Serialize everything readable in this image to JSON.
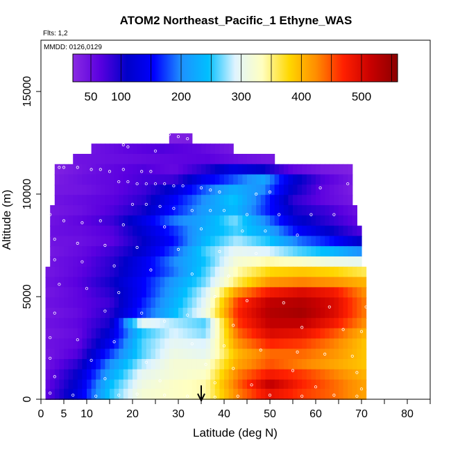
{
  "chart_data": {
    "type": "heatmap",
    "title": "ATOM2 Northeast_Pacific_1 Ethyne_WAS",
    "flights_label": "Flts: 1,2",
    "dates_label": "MMDD: 0126,0129",
    "xlabel": "Latitude (deg N)",
    "ylabel": "Altitude (m)",
    "xlim": [
      0,
      85
    ],
    "ylim": [
      0,
      17500
    ],
    "x_ticks": [
      0,
      5,
      10,
      20,
      30,
      40,
      50,
      60,
      70,
      80
    ],
    "x_minor_ticks": [
      15,
      25,
      35,
      45,
      55,
      65,
      75,
      85
    ],
    "y_ticks": [
      0,
      5000,
      10000,
      15000
    ],
    "colorbar": {
      "range": [
        20,
        560
      ],
      "ticks": [
        50,
        100,
        200,
        300,
        400,
        500
      ],
      "colors": [
        "#8a2be2",
        "#5a00e0",
        "#0000c8",
        "#0000ff",
        "#1e90ff",
        "#00bfff",
        "#e0f4ff",
        "#ffffc0",
        "#ffd700",
        "#ff8c00",
        "#ff2000",
        "#c80000",
        "#8b0000"
      ]
    },
    "arrow_latitude": 35,
    "rows": [
      {
        "alt": 12700,
        "lat": [
          28,
          33
        ],
        "v": [
          30,
          35
        ]
      },
      {
        "alt": 12200,
        "lat": [
          11,
          42
        ],
        "v": [
          45,
          60,
          70,
          60,
          40
        ]
      },
      {
        "alt": 11700,
        "lat": [
          7,
          51
        ],
        "v": [
          45,
          50,
          55,
          60,
          65,
          50,
          40
        ]
      },
      {
        "alt": 11200,
        "lat": [
          3,
          68
        ],
        "v": [
          30,
          45,
          60,
          70,
          55,
          90,
          130,
          110,
          60,
          40,
          30
        ]
      },
      {
        "alt": 10700,
        "lat": [
          3,
          68
        ],
        "v": [
          35,
          50,
          60,
          75,
          80,
          140,
          180,
          220,
          120,
          70,
          40
        ]
      },
      {
        "alt": 10200,
        "lat": [
          3,
          68
        ],
        "v": [
          40,
          45,
          60,
          80,
          120,
          180,
          230,
          200,
          110,
          60,
          35
        ]
      },
      {
        "alt": 9700,
        "lat": [
          3,
          68
        ],
        "v": [
          45,
          55,
          65,
          90,
          150,
          200,
          250,
          180,
          90,
          60,
          40
        ]
      },
      {
        "alt": 9200,
        "lat": [
          2,
          69
        ],
        "v": [
          40,
          50,
          70,
          100,
          160,
          210,
          240,
          170,
          100,
          80,
          50
        ]
      },
      {
        "alt": 8700,
        "lat": [
          2,
          69
        ],
        "v": [
          45,
          60,
          80,
          130,
          190,
          220,
          270,
          200,
          120,
          90,
          60
        ]
      },
      {
        "alt": 8200,
        "lat": [
          2,
          70
        ],
        "v": [
          50,
          55,
          70,
          120,
          170,
          230,
          260,
          220,
          150,
          110,
          70
        ]
      },
      {
        "alt": 7700,
        "lat": [
          2,
          70
        ],
        "v": [
          45,
          50,
          65,
          110,
          160,
          240,
          280,
          250,
          190,
          160,
          110
        ]
      },
      {
        "alt": 7200,
        "lat": [
          2,
          70
        ],
        "v": [
          40,
          55,
          80,
          120,
          180,
          260,
          300,
          290,
          260,
          240,
          200
        ]
      },
      {
        "alt": 6700,
        "lat": [
          2,
          70
        ],
        "v": [
          45,
          60,
          90,
          140,
          200,
          250,
          320,
          340,
          330,
          310,
          300
        ]
      },
      {
        "alt": 6200,
        "lat": [
          1,
          71
        ],
        "v": [
          40,
          60,
          90,
          140,
          190,
          260,
          340,
          380,
          390,
          380,
          360
        ]
      },
      {
        "alt": 5700,
        "lat": [
          1,
          71
        ],
        "v": [
          45,
          65,
          100,
          150,
          210,
          270,
          360,
          420,
          430,
          420,
          400
        ]
      },
      {
        "alt": 5200,
        "lat": [
          1,
          71
        ],
        "v": [
          40,
          60,
          90,
          150,
          220,
          290,
          420,
          480,
          500,
          480,
          420
        ]
      },
      {
        "alt": 4700,
        "lat": [
          1,
          71
        ],
        "v": [
          45,
          60,
          80,
          160,
          230,
          300,
          460,
          520,
          530,
          500,
          430
        ]
      },
      {
        "alt": 4200,
        "lat": [
          1,
          71
        ],
        "v": [
          40,
          55,
          90,
          170,
          240,
          310,
          470,
          530,
          540,
          500,
          430
        ]
      },
      {
        "alt": 3700,
        "lat": [
          1,
          71
        ],
        "v": [
          45,
          60,
          100,
          300,
          280,
          260,
          460,
          520,
          520,
          480,
          420
        ]
      },
      {
        "alt": 3200,
        "lat": [
          1,
          71
        ],
        "v": [
          40,
          55,
          120,
          250,
          290,
          270,
          440,
          500,
          490,
          450,
          400
        ]
      },
      {
        "alt": 2700,
        "lat": [
          1,
          71
        ],
        "v": [
          45,
          60,
          140,
          260,
          300,
          290,
          420,
          470,
          460,
          430,
          390
        ]
      },
      {
        "alt": 2200,
        "lat": [
          1,
          71
        ],
        "v": [
          40,
          70,
          170,
          260,
          310,
          300,
          400,
          440,
          440,
          420,
          390
        ]
      },
      {
        "alt": 1700,
        "lat": [
          1,
          71
        ],
        "v": [
          45,
          90,
          200,
          280,
          320,
          320,
          410,
          450,
          430,
          410,
          390
        ]
      },
      {
        "alt": 1200,
        "lat": [
          1,
          71
        ],
        "v": [
          50,
          110,
          220,
          300,
          320,
          330,
          430,
          480,
          460,
          430,
          400
        ]
      },
      {
        "alt": 700,
        "lat": [
          1,
          71
        ],
        "v": [
          55,
          120,
          240,
          310,
          330,
          340,
          440,
          520,
          470,
          440,
          410
        ]
      },
      {
        "alt": 250,
        "lat": [
          1,
          71
        ],
        "v": [
          60,
          130,
          250,
          320,
          330,
          340,
          430,
          490,
          460,
          440,
          410
        ]
      }
    ],
    "samples": [
      [
        28,
        12900
      ],
      [
        30,
        12800
      ],
      [
        32,
        12700
      ],
      [
        18,
        12400
      ],
      [
        19,
        12300
      ],
      [
        25,
        12100
      ],
      [
        4,
        11300
      ],
      [
        5,
        11300
      ],
      [
        8,
        11300
      ],
      [
        11,
        11200
      ],
      [
        13,
        11200
      ],
      [
        15,
        11100
      ],
      [
        18,
        11200
      ],
      [
        22,
        11100
      ],
      [
        24,
        11100
      ],
      [
        17,
        10600
      ],
      [
        19,
        10600
      ],
      [
        21,
        10500
      ],
      [
        23,
        10500
      ],
      [
        25,
        10500
      ],
      [
        27,
        10500
      ],
      [
        29,
        10400
      ],
      [
        31,
        10400
      ],
      [
        35,
        10300
      ],
      [
        37,
        10200
      ],
      [
        39,
        10100
      ],
      [
        47,
        10000
      ],
      [
        50,
        10100
      ],
      [
        61,
        10300
      ],
      [
        67,
        10500
      ],
      [
        20,
        9500
      ],
      [
        23,
        9500
      ],
      [
        26,
        9400
      ],
      [
        29,
        9300
      ],
      [
        33,
        9200
      ],
      [
        37,
        9200
      ],
      [
        40,
        9200
      ],
      [
        45,
        9000
      ],
      [
        52,
        9000
      ],
      [
        59,
        9000
      ],
      [
        64,
        9000
      ],
      [
        2,
        9000
      ],
      [
        5,
        8700
      ],
      [
        9,
        8600
      ],
      [
        13,
        8700
      ],
      [
        18,
        8500
      ],
      [
        27,
        8400
      ],
      [
        35,
        8300
      ],
      [
        44,
        8200
      ],
      [
        49,
        8200
      ],
      [
        56,
        8000
      ],
      [
        3,
        7800
      ],
      [
        8,
        7600
      ],
      [
        14,
        7500
      ],
      [
        21,
        7400
      ],
      [
        30,
        7300
      ],
      [
        39,
        7200
      ],
      [
        47,
        7100
      ],
      [
        3,
        6800
      ],
      [
        9,
        6700
      ],
      [
        16,
        6500
      ],
      [
        24,
        6300
      ],
      [
        33,
        6100
      ],
      [
        41,
        6000
      ],
      [
        4,
        5600
      ],
      [
        10,
        5400
      ],
      [
        17,
        5200
      ],
      [
        38,
        5000
      ],
      [
        45,
        4800
      ],
      [
        53,
        4700
      ],
      [
        63,
        4500
      ],
      [
        71,
        4500
      ],
      [
        3,
        4200
      ],
      [
        14,
        4300
      ],
      [
        22,
        4200
      ],
      [
        32,
        4100
      ],
      [
        27,
        3800
      ],
      [
        42,
        3600
      ],
      [
        57,
        3500
      ],
      [
        66,
        3400
      ],
      [
        70,
        3300
      ],
      [
        2,
        3000
      ],
      [
        8,
        2900
      ],
      [
        16,
        2800
      ],
      [
        33,
        2700
      ],
      [
        40,
        2600
      ],
      [
        48,
        2400
      ],
      [
        56,
        2300
      ],
      [
        62,
        2200
      ],
      [
        68,
        2100
      ],
      [
        2,
        2000
      ],
      [
        11,
        1900
      ],
      [
        23,
        1800
      ],
      [
        36,
        1700
      ],
      [
        42,
        1500
      ],
      [
        55,
        1400
      ],
      [
        69,
        1300
      ],
      [
        3,
        1100
      ],
      [
        14,
        1000
      ],
      [
        26,
        900
      ],
      [
        38,
        800
      ],
      [
        46,
        700
      ],
      [
        60,
        600
      ],
      [
        70,
        500
      ],
      [
        2,
        300
      ],
      [
        7,
        200
      ],
      [
        12,
        150
      ],
      [
        17,
        200
      ],
      [
        21,
        250
      ],
      [
        27,
        200
      ],
      [
        32,
        150
      ],
      [
        38,
        100
      ],
      [
        43,
        150
      ],
      [
        50,
        200
      ],
      [
        57,
        150
      ],
      [
        64,
        200
      ],
      [
        69,
        150
      ]
    ]
  }
}
